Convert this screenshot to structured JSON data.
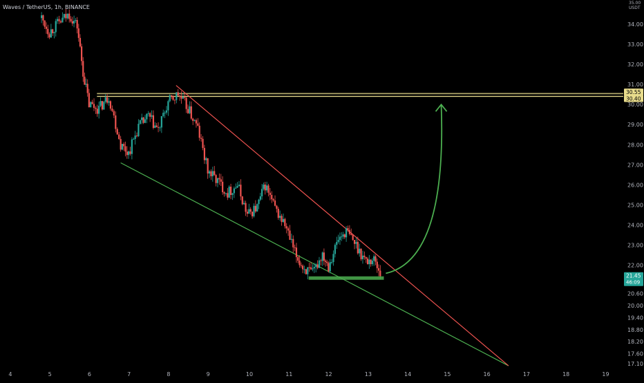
{
  "header": {
    "symbol_label": "Waves / TetherUS, 1h, BINANCE"
  },
  "colors": {
    "background": "#000000",
    "up_candle": "#26a69a",
    "down_candle": "#ef5350",
    "resistance_band": "#e8dc8c",
    "support_zone": "#4caf50",
    "upper_trendline": "#ef5350",
    "lower_trendline": "#4caf50",
    "projection_arrow": "#4caf50",
    "axis_text": "#b2b5be",
    "current_price_badge": "#26a69a"
  },
  "chart_data": {
    "type": "candlestick",
    "title": "",
    "price_unit": "USDT",
    "ylim": [
      16.9,
      35.2
    ],
    "xlim": [
      3.75,
      19.5
    ],
    "y_ticks": [
      "17.10",
      "17.60",
      "18.20",
      "18.80",
      "19.40",
      "20.00",
      "20.60",
      "22.00",
      "23.00",
      "24.00",
      "25.00",
      "26.00",
      "27.00",
      "28.00",
      "29.00",
      "30.00",
      "31.00",
      "32.00",
      "33.00",
      "34.00"
    ],
    "x_ticks": [
      "4",
      "5",
      "6",
      "7",
      "8",
      "9",
      "10",
      "11",
      "12",
      "13",
      "14",
      "15",
      "16",
      "17",
      "18",
      "19"
    ],
    "top_price_label": "35.00",
    "price_labels": [
      {
        "label": "30.55",
        "price": 30.55,
        "color": "#e8dc8c"
      },
      {
        "label": "30.40",
        "price": 30.4,
        "color": "#e8dc8c"
      },
      {
        "label": "21.45",
        "price": 21.45,
        "color": "#26a69a"
      }
    ],
    "countdown": "46:09",
    "grid": false,
    "trend_channel": {
      "upper_line": {
        "from": [
          8.2,
          30.95
        ],
        "to": [
          16.6,
          17.0
        ]
      },
      "lower_line": {
        "from": [
          6.8,
          27.1
        ],
        "to": [
          16.6,
          17.0
        ]
      }
    },
    "resistance_zone": {
      "x_start": 6.2,
      "x_end": 19.5,
      "low": 30.4,
      "high": 30.55
    },
    "support_zone": {
      "x_start": 11.55,
      "x_end": 13.45,
      "low": 21.3,
      "high": 21.45
    },
    "projection_arrow": {
      "from": [
        13.5,
        21.6
      ],
      "to": [
        14.9,
        30.0
      ]
    },
    "anchors": [
      [
        4.8,
        34.3
      ],
      [
        5.0,
        33.6
      ],
      [
        5.2,
        34.0
      ],
      [
        5.5,
        34.5
      ],
      [
        5.7,
        33.9
      ],
      [
        5.85,
        31.6
      ],
      [
        6.0,
        30.0
      ],
      [
        6.25,
        29.8
      ],
      [
        6.5,
        30.4
      ],
      [
        6.8,
        28.0
      ],
      [
        7.0,
        27.6
      ],
      [
        7.25,
        28.9
      ],
      [
        7.5,
        29.4
      ],
      [
        7.75,
        28.7
      ],
      [
        8.0,
        30.1
      ],
      [
        8.25,
        30.5
      ],
      [
        8.5,
        29.8
      ],
      [
        8.75,
        28.8
      ],
      [
        9.0,
        26.7
      ],
      [
        9.25,
        26.2
      ],
      [
        9.5,
        25.6
      ],
      [
        9.75,
        26.0
      ],
      [
        10.0,
        24.5
      ],
      [
        10.25,
        24.9
      ],
      [
        10.45,
        26.0
      ],
      [
        10.7,
        24.8
      ],
      [
        10.95,
        24.0
      ],
      [
        11.2,
        22.6
      ],
      [
        11.4,
        21.9
      ],
      [
        11.65,
        21.55
      ],
      [
        11.9,
        22.6
      ],
      [
        12.05,
        22.0
      ],
      [
        12.3,
        23.3
      ],
      [
        12.5,
        23.7
      ],
      [
        12.75,
        23.0
      ],
      [
        13.0,
        22.2
      ],
      [
        13.2,
        22.3
      ],
      [
        13.4,
        21.45
      ]
    ]
  }
}
